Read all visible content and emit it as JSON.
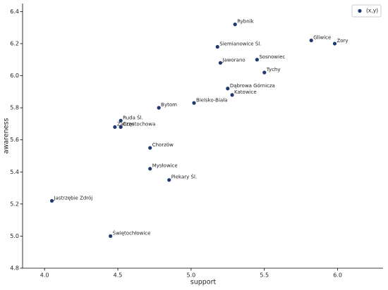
{
  "chart_data": {
    "type": "scatter",
    "x_label": "support",
    "y_label": "awareness",
    "series": [
      {
        "name": "(x,y)",
        "color": "#1f3a6e",
        "x": [
          5.3,
          5.82,
          5.98,
          5.18,
          5.45,
          5.2,
          5.5,
          5.25,
          5.28,
          5.02,
          4.78,
          4.52,
          4.48,
          4.52,
          4.72,
          4.72,
          4.85,
          4.05,
          4.45
        ],
        "values": [
          6.32,
          6.22,
          6.2,
          6.18,
          6.1,
          6.08,
          6.02,
          5.92,
          5.88,
          5.83,
          5.8,
          5.72,
          5.68,
          5.68,
          5.55,
          5.42,
          5.35,
          5.22,
          5.0
        ]
      }
    ],
    "labels": [
      "Rybnik",
      "Gliwice",
      "Żory",
      "Siemianowice Śl.",
      "Sosnowiec",
      "Jaworano",
      "Tychy",
      "Dąbrowa Górnicza",
      "Katowice",
      "Bielsko-Biała",
      "Bytom",
      "Ruda Śl.",
      "Zabrze",
      "Częstochowa",
      "Chorzów",
      "Mysłowice",
      "Piekary Śl.",
      "Jastrzębie Zdrój",
      "Świętochłowice"
    ],
    "xlim": [
      3.85,
      6.31
    ],
    "ylim": [
      4.8,
      6.45
    ],
    "xticks": [
      {
        "value": 4,
        "label": "4.0"
      },
      4.5,
      {
        "value": 5,
        "label": "5.0"
      },
      5.5,
      {
        "value": 6,
        "label": "6.0"
      }
    ],
    "yticks": [
      4.8,
      {
        "value": 5,
        "label": "5.0"
      },
      5.2,
      5.4,
      5.6,
      5.8,
      {
        "value": 6,
        "label": "6.0"
      },
      6.2,
      6.4
    ],
    "legend": "upper right"
  }
}
